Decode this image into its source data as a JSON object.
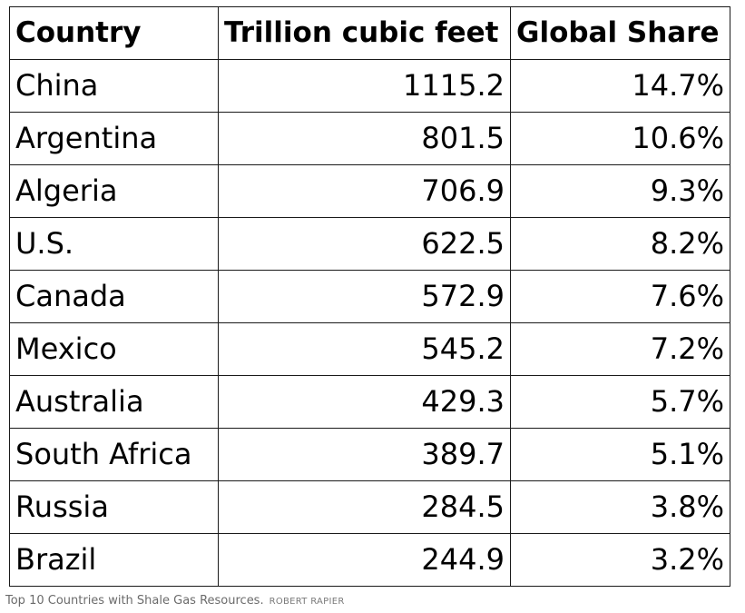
{
  "chart_data": {
    "type": "table",
    "columns": [
      "Country",
      "Trillion cubic feet",
      "Global Share"
    ],
    "rows": [
      [
        "China",
        "1115.2",
        "14.7%"
      ],
      [
        "Argentina",
        "801.5",
        "10.6%"
      ],
      [
        "Algeria",
        "706.9",
        "9.3%"
      ],
      [
        "U.S.",
        "622.5",
        "8.2%"
      ],
      [
        "Canada",
        "572.9",
        "7.6%"
      ],
      [
        "Mexico",
        "545.2",
        "7.2%"
      ],
      [
        "Australia",
        "429.3",
        "5.7%"
      ],
      [
        "South Africa",
        "389.7",
        "5.1%"
      ],
      [
        "Russia",
        "284.5",
        "3.8%"
      ],
      [
        "Brazil",
        "244.9",
        "3.2%"
      ]
    ]
  },
  "caption": {
    "text": "Top 10 Countries with Shale Gas Resources.",
    "credit": "ROBERT RAPIER"
  },
  "colors": {
    "text": "#000000",
    "border": "#1a1a1a",
    "caption": "#6b6b6b"
  }
}
